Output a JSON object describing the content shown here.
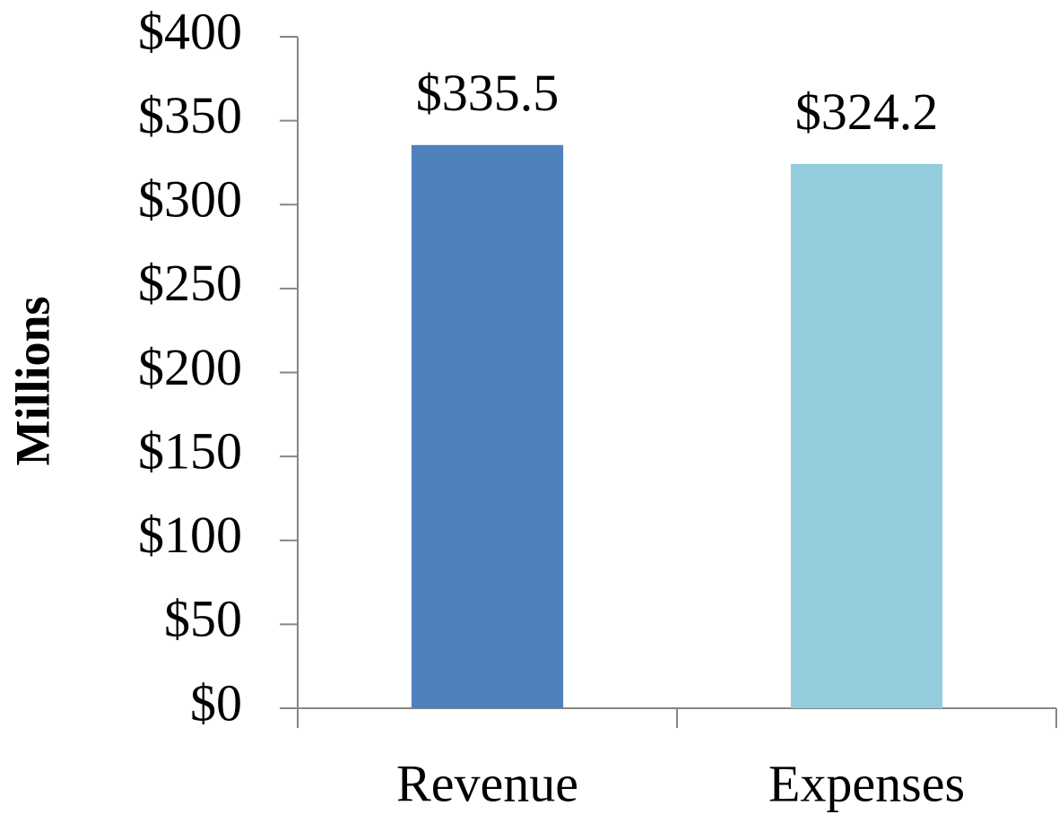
{
  "chart_data": {
    "type": "bar",
    "y_axis_label": "Millions",
    "categories": [
      "Revenue",
      "Expenses"
    ],
    "values": [
      335.5,
      324.2
    ],
    "value_labels": [
      "$335.5",
      "$324.2"
    ],
    "colors": [
      "#4f81bd",
      "#93cddd"
    ],
    "ylim": [
      0,
      400
    ],
    "yticks": [
      {
        "value": 0,
        "label": "$0"
      },
      {
        "value": 50,
        "label": "$50"
      },
      {
        "value": 100,
        "label": "$100"
      },
      {
        "value": 150,
        "label": "$150"
      },
      {
        "value": 200,
        "label": "$200"
      },
      {
        "value": 250,
        "label": "$250"
      },
      {
        "value": 300,
        "label": "$300"
      },
      {
        "value": 350,
        "label": "$350"
      },
      {
        "value": 400,
        "label": "$400"
      }
    ],
    "grid": false
  }
}
